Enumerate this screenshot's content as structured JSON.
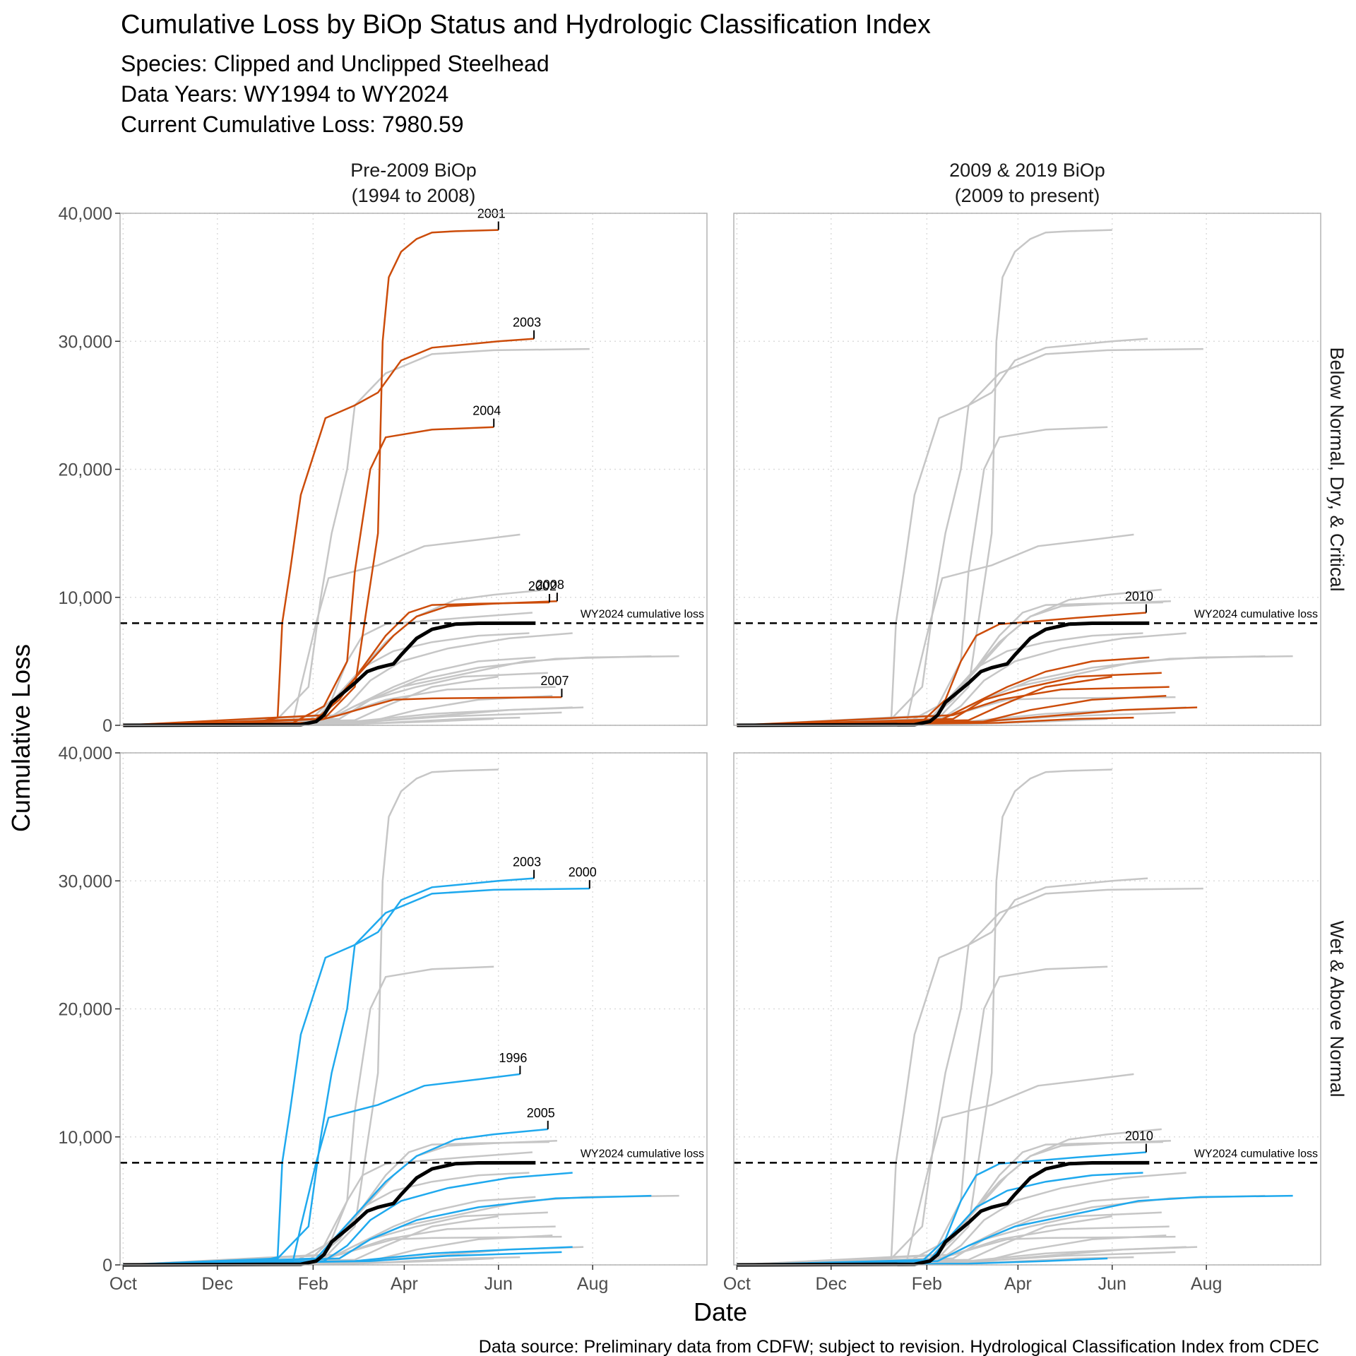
{
  "chart_data": {
    "type": "line",
    "title": "Cumulative Loss by BiOp Status and Hydrologic Classification Index",
    "subtitle": [
      "Species: Clipped and Unclipped Steelhead",
      "Data Years: WY1994 to WY2024",
      "Current Cumulative Loss: 7980.59"
    ],
    "caption": "Data source: Preliminary data from CDFW; subject to revision. Hydrological Classification Index from CDEC",
    "xlabel": "Date",
    "ylabel": "Cumulative Loss",
    "columns": [
      [
        "Pre-2009 BiOp",
        "(1994 to 2008)"
      ],
      [
        "2009 & 2019 BiOp",
        "(2009 to present)"
      ]
    ],
    "rows": [
      "Below Normal, Dry, & Critical",
      "Wet & Above Normal"
    ],
    "xlim": [
      -2,
      378
    ],
    "xticks": [
      {
        "value": 0,
        "label": "Oct"
      },
      {
        "value": 61,
        "label": "Dec"
      },
      {
        "value": 123,
        "label": "Feb"
      },
      {
        "value": 182,
        "label": "Apr"
      },
      {
        "value": 243,
        "label": "Jun"
      },
      {
        "value": 304,
        "label": "Aug"
      }
    ],
    "ylim": [
      0,
      40000
    ],
    "yticks": [
      0,
      {
        "value": 10000,
        "label": "10,000"
      },
      {
        "value": 20000,
        "label": "20,000"
      },
      {
        "value": 30000,
        "label": "30,000"
      },
      {
        "value": 40000,
        "label": "40,000"
      }
    ],
    "grid": true,
    "row_colors": [
      "#cc4c0a",
      "#1fa9ee"
    ],
    "other_color": "#c6c6c6",
    "reference": {
      "value": 7980.59,
      "label": "WY2024 cumulative loss"
    },
    "current": {
      "color": "#000000",
      "x": [
        0,
        115,
        125,
        130,
        135,
        145,
        150,
        158,
        165,
        175,
        180,
        190,
        200,
        215,
        230,
        267
      ],
      "values": [
        0,
        50,
        300,
        800,
        1800,
        2800,
        3300,
        4200,
        4500,
        4800,
        5500,
        6800,
        7500,
        7900,
        7970,
        7980.59
      ]
    },
    "series": [
      {
        "label": "2003",
        "facets": [
          [
            0,
            0
          ],
          [
            0,
            1
          ]
        ],
        "x": [
          33,
          85,
          100,
          103,
          108,
          115,
          131,
          150,
          165,
          180,
          200,
          243,
          266
        ],
        "values": [
          100,
          200,
          600,
          8000,
          12000,
          18000,
          24000,
          25000,
          26000,
          28500,
          29500,
          30000,
          30200
        ]
      },
      {
        "label": "2001",
        "facets": [
          [
            0,
            0
          ]
        ],
        "x": [
          33,
          130,
          150,
          165,
          168,
          172,
          180,
          190,
          200,
          215,
          243
        ],
        "values": [
          0,
          500,
          3000,
          15000,
          30000,
          35000,
          37000,
          38000,
          38500,
          38600,
          38700
        ]
      },
      {
        "label": "2004",
        "facets": [
          [
            0,
            0
          ]
        ],
        "x": [
          0,
          110,
          130,
          145,
          150,
          160,
          170,
          200,
          240
        ],
        "values": [
          0,
          200,
          1500,
          5000,
          12000,
          20000,
          22500,
          23100,
          23300
        ]
      },
      {
        "label": "2000",
        "facets": [
          [
            0,
            1
          ]
        ],
        "x": [
          0,
          100,
          120,
          128,
          135,
          145,
          150,
          170,
          200,
          240,
          302
        ],
        "values": [
          0,
          500,
          3000,
          10000,
          15000,
          20000,
          25000,
          27500,
          29000,
          29300,
          29400
        ]
      },
      {
        "label": "1996",
        "facets": [
          [
            0,
            1
          ]
        ],
        "x": [
          0,
          110,
          115,
          125,
          133,
          165,
          195,
          230,
          257
        ],
        "values": [
          0,
          300,
          3000,
          8000,
          11500,
          12500,
          14000,
          14500,
          14900
        ]
      },
      {
        "label": "2005",
        "facets": [
          [
            0,
            1
          ]
        ],
        "x": [
          0,
          125,
          140,
          155,
          170,
          190,
          215,
          240,
          275
        ],
        "values": [
          0,
          500,
          2500,
          4500,
          6500,
          8500,
          9800,
          10200,
          10600
        ]
      },
      {
        "label": "2008",
        "facets": [
          [
            0,
            0
          ]
        ],
        "x": [
          0,
          130,
          145,
          160,
          175,
          190,
          210,
          240,
          281
        ],
        "values": [
          0,
          800,
          3000,
          5000,
          7000,
          8500,
          9300,
          9500,
          9700
        ]
      },
      {
        "label": "2002",
        "facets": [
          [
            0,
            0
          ]
        ],
        "x": [
          0,
          125,
          140,
          155,
          170,
          185,
          200,
          230,
          276
        ],
        "values": [
          0,
          500,
          2000,
          4500,
          7000,
          8800,
          9400,
          9500,
          9600
        ]
      },
      {
        "label": "2007",
        "facets": [
          [
            0,
            0
          ]
        ],
        "x": [
          0,
          120,
          140,
          160,
          175,
          200,
          284
        ],
        "values": [
          0,
          200,
          800,
          1500,
          2000,
          2100,
          2200
        ]
      },
      {
        "label": "2010",
        "facets": [
          [
            1,
            0
          ],
          [
            1,
            1
          ]
        ],
        "x": [
          0,
          120,
          135,
          145,
          155,
          170,
          190,
          220,
          265
        ],
        "values": [
          0,
          300,
          2000,
          5000,
          7000,
          7900,
          8100,
          8400,
          8800
        ]
      },
      {
        "facets": [
          [
            1,
            0
          ]
        ],
        "x": [
          0,
          130,
          150,
          175,
          200,
          230,
          267
        ],
        "values": [
          0,
          300,
          1500,
          3000,
          4200,
          5000,
          5300
        ]
      },
      {
        "facets": [
          [
            1,
            0
          ]
        ],
        "x": [
          0,
          140,
          160,
          190,
          220,
          275
        ],
        "values": [
          0,
          500,
          2000,
          3000,
          3800,
          4100
        ]
      },
      {
        "facets": [
          [
            1,
            0
          ]
        ],
        "x": [
          0,
          150,
          170,
          200,
          243
        ],
        "values": [
          0,
          400,
          1500,
          3000,
          3800
        ]
      },
      {
        "facets": [
          [
            1,
            0
          ]
        ],
        "x": [
          0,
          160,
          190,
          230,
          278
        ],
        "values": [
          0,
          300,
          1200,
          2000,
          2300
        ]
      },
      {
        "facets": [
          [
            1,
            0
          ]
        ],
        "x": [
          0,
          150,
          200,
          250,
          298
        ],
        "values": [
          0,
          200,
          700,
          1200,
          1400
        ]
      },
      {
        "facets": [
          [
            1,
            0
          ]
        ],
        "x": [
          0,
          170,
          220,
          257
        ],
        "values": [
          0,
          200,
          500,
          600
        ]
      },
      {
        "facets": [
          [
            1,
            0
          ]
        ],
        "x": [
          0,
          140,
          170,
          210,
          280
        ],
        "values": [
          0,
          800,
          2000,
          2800,
          3000
        ]
      },
      {
        "facets": [
          [
            1,
            1
          ]
        ],
        "x": [
          0,
          130,
          150,
          180,
          220,
          260,
          300,
          360
        ],
        "values": [
          0,
          300,
          1500,
          3000,
          4000,
          5000,
          5300,
          5400
        ]
      },
      {
        "facets": [
          [
            1,
            1
          ]
        ],
        "x": [
          0,
          125,
          140,
          155,
          175,
          200,
          230,
          263
        ],
        "values": [
          0,
          400,
          2500,
          4500,
          5800,
          6500,
          7000,
          7200
        ]
      },
      {
        "facets": [
          [
            1,
            1
          ]
        ],
        "x": [
          0,
          150,
          200,
          240
        ],
        "values": [
          0,
          100,
          300,
          500
        ]
      },
      {
        "facets": [
          [
            0,
            1
          ]
        ],
        "x": [
          0,
          140,
          160,
          190,
          230,
          280,
          342
        ],
        "values": [
          0,
          500,
          2000,
          3500,
          4500,
          5200,
          5400
        ]
      },
      {
        "facets": [
          [
            0,
            1
          ]
        ],
        "x": [
          0,
          150,
          200,
          250,
          291
        ],
        "values": [
          0,
          300,
          900,
          1200,
          1400
        ]
      },
      {
        "facets": [
          [
            0,
            1
          ]
        ],
        "x": [
          0,
          160,
          210,
          284
        ],
        "values": [
          0,
          300,
          700,
          1000
        ]
      },
      {
        "facets": [
          [
            0,
            1
          ]
        ],
        "x": [
          0,
          130,
          145,
          160,
          180,
          210,
          250,
          291
        ],
        "values": [
          0,
          300,
          1500,
          3500,
          5000,
          6000,
          6800,
          7200
        ]
      }
    ]
  }
}
